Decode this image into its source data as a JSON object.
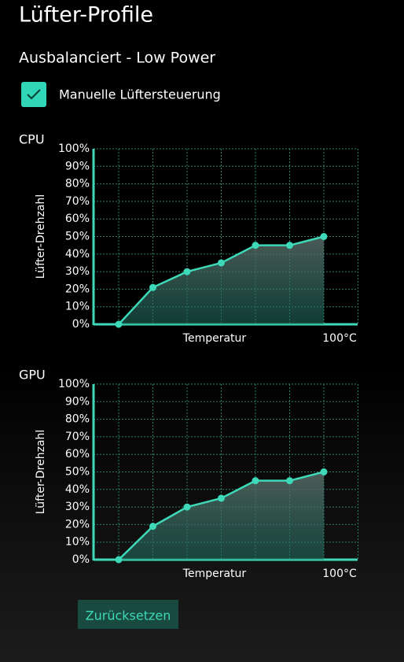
{
  "title": "Lüfter-Profile",
  "subtitle": "Ausbalanciert - Low Power",
  "checkbox_label": "Manuelle Lüftersteuerung",
  "reset_button": "Zurücksetzen",
  "chart_data": [
    {
      "type": "line",
      "label": "CPU",
      "y_label": "Lüfter-Drehzahl",
      "x_label": "Temperatur",
      "x_end_label": "100°C",
      "color": "#3dd9b8",
      "values": [
        0,
        21,
        30,
        35,
        45,
        45,
        50
      ],
      "ylim": [
        0,
        100
      ],
      "yticks": [
        {
          "value": 0,
          "label": "0%"
        },
        {
          "value": 10,
          "label": "10%"
        },
        {
          "value": 20,
          "label": "20%"
        },
        {
          "value": 30,
          "label": "30%"
        },
        {
          "value": 40,
          "label": "40%"
        },
        {
          "value": 50,
          "label": "50%"
        },
        {
          "value": 60,
          "label": "60%"
        },
        {
          "value": 70,
          "label": "70%"
        },
        {
          "value": 80,
          "label": "80%"
        },
        {
          "value": 90,
          "label": "90%"
        },
        {
          "value": 100,
          "label": "100%"
        }
      ],
      "grid": true
    },
    {
      "type": "line",
      "label": "GPU",
      "y_label": "Lüfter-Drehzahl",
      "x_label": "Temperatur",
      "x_end_label": "100°C",
      "color": "#3dd9b8",
      "values": [
        0,
        19,
        30,
        35,
        45,
        45,
        50
      ],
      "ylim": [
        0,
        100
      ],
      "yticks": [
        {
          "value": 0,
          "label": "0%"
        },
        {
          "value": 10,
          "label": "10%"
        },
        {
          "value": 20,
          "label": "20%"
        },
        {
          "value": 30,
          "label": "30%"
        },
        {
          "value": 40,
          "label": "40%"
        },
        {
          "value": 50,
          "label": "50%"
        },
        {
          "value": 60,
          "label": "60%"
        },
        {
          "value": 70,
          "label": "70%"
        },
        {
          "value": 80,
          "label": "80%"
        },
        {
          "value": 90,
          "label": "90%"
        },
        {
          "value": 100,
          "label": "100%"
        }
      ],
      "grid": true
    }
  ]
}
